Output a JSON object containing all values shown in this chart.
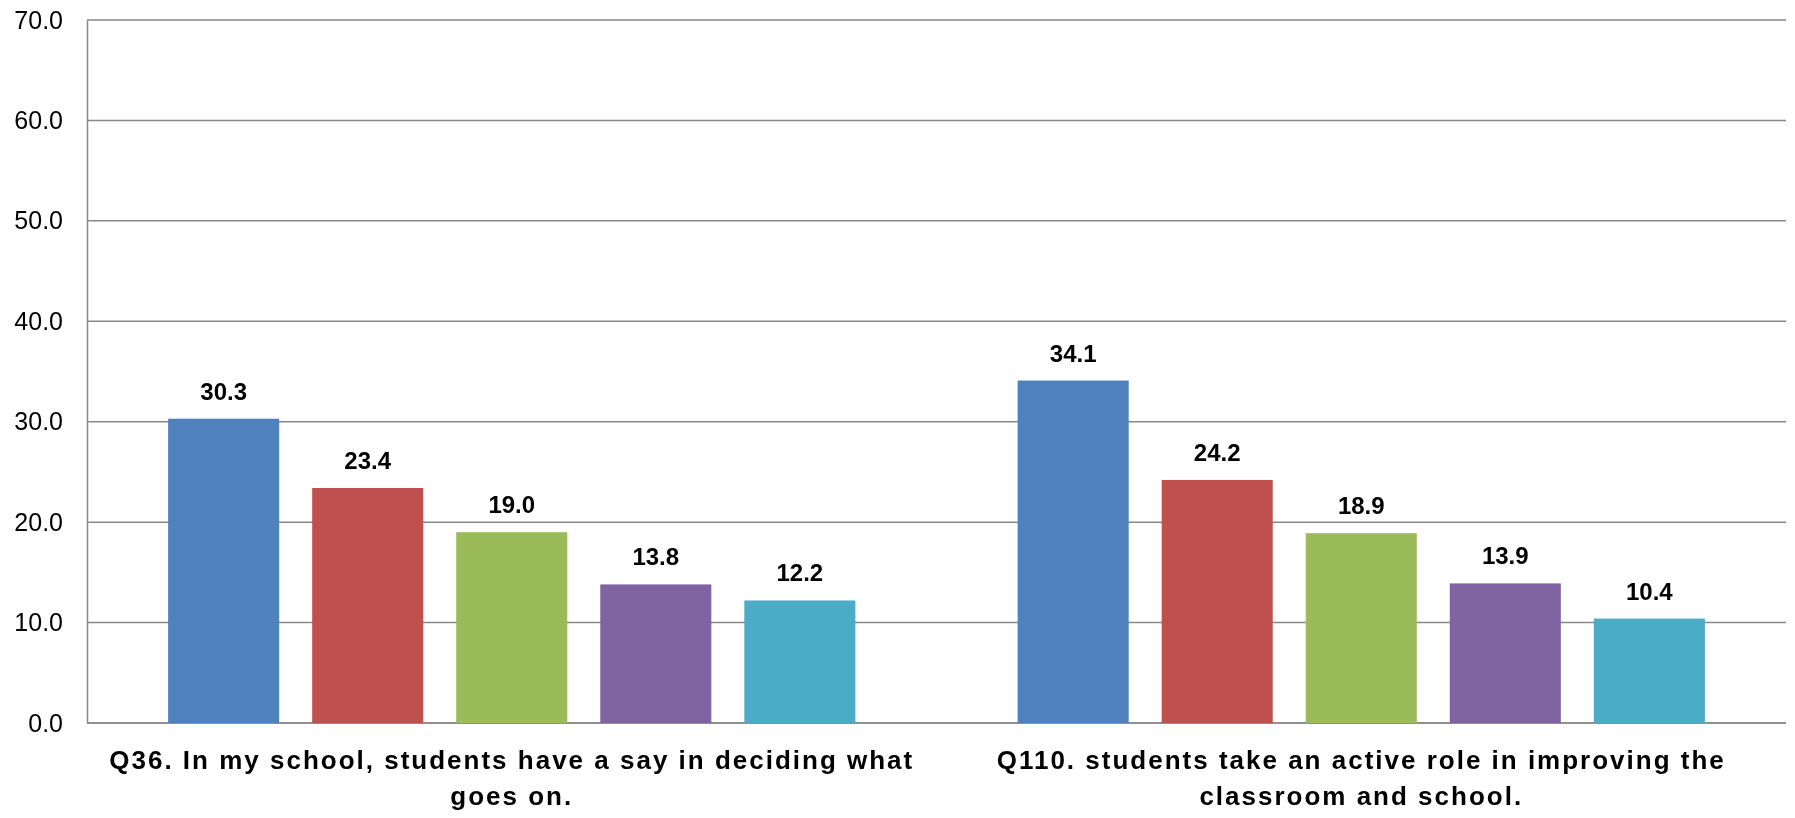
{
  "chart_data": {
    "type": "bar",
    "categories": [
      "Q36. In my school, students have a say in deciding what goes on.",
      "Q110. students take an active role in improving the classroom and school."
    ],
    "series": [
      {
        "color": "#4f81bd",
        "values": [
          30.3,
          34.1
        ],
        "value_labels": [
          "30.3",
          "34.1"
        ]
      },
      {
        "color": "#c0504d",
        "values": [
          23.4,
          24.2
        ],
        "value_labels": [
          "23.4",
          "24.2"
        ]
      },
      {
        "color": "#9bbb59",
        "values": [
          19.0,
          18.9
        ],
        "value_labels": [
          "19.0",
          "18.9"
        ]
      },
      {
        "color": "#8064a2",
        "values": [
          13.8,
          13.9
        ],
        "value_labels": [
          "13.8",
          "13.9"
        ]
      },
      {
        "color": "#4bacc6",
        "values": [
          12.2,
          10.4
        ],
        "value_labels": [
          "12.2",
          "10.4"
        ]
      }
    ],
    "ylim": [
      0,
      70
    ],
    "yticks": [
      {
        "value": 0,
        "label": "0.0"
      },
      {
        "value": 10,
        "label": "10.0"
      },
      {
        "value": 20,
        "label": "20.0"
      },
      {
        "value": 30,
        "label": "30.0"
      },
      {
        "value": 40,
        "label": "40.0"
      },
      {
        "value": 50,
        "label": "50.0"
      },
      {
        "value": 60,
        "label": "60.0"
      },
      {
        "value": 70,
        "label": "70.0"
      }
    ],
    "grid": "y"
  }
}
